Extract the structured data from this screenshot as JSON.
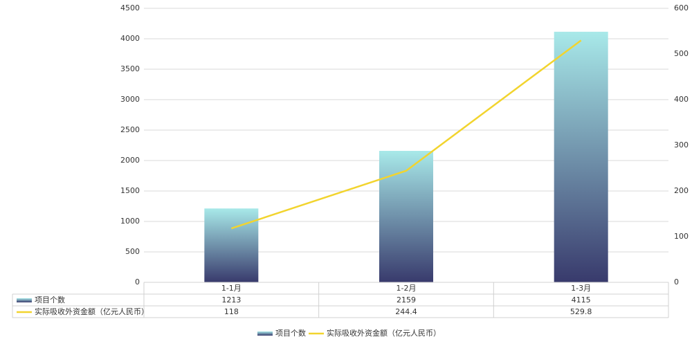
{
  "chart_data": {
    "type": "bar-line",
    "categories": [
      "1-1月",
      "1-2月",
      "1-3月"
    ],
    "series": [
      {
        "name": "项目个数",
        "type": "bar",
        "color": [
          "#a8e9e9",
          "#383a6c"
        ],
        "values": [
          1213,
          2159,
          4115
        ]
      },
      {
        "name": "实际吸收外资金额（亿元人民币）",
        "type": "line",
        "axis": "y2",
        "color": "#f2d42e",
        "values": [
          118,
          244.4,
          529.8
        ]
      }
    ],
    "ylim": [
      0,
      4500
    ],
    "yticks": [
      0,
      500,
      1000,
      1500,
      2000,
      2500,
      3000,
      3500,
      4000,
      4500
    ],
    "y2lim": [
      0,
      600
    ],
    "y2ticks": [
      0,
      100,
      200,
      300,
      400,
      500,
      600
    ],
    "grid": true,
    "legend": "bottom",
    "data_table": true
  }
}
